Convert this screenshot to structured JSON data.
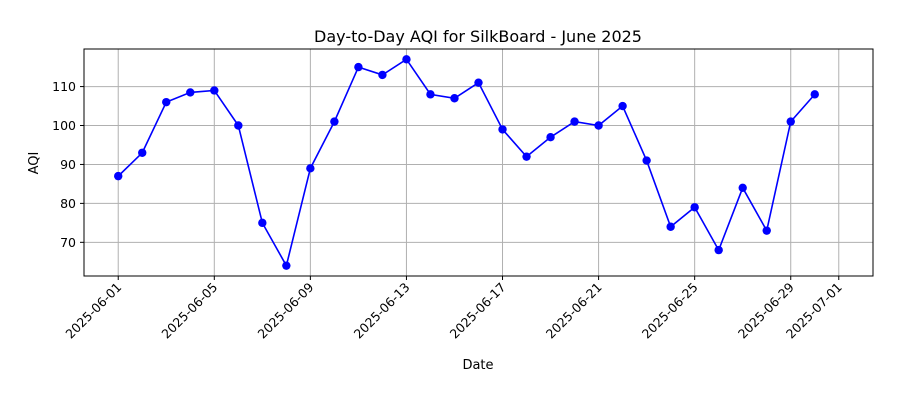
{
  "chart_data": {
    "type": "line",
    "title": "Day-to-Day AQI for SilkBoard - June 2025",
    "xlabel": "Date",
    "ylabel": "AQI",
    "grid": true,
    "x": [
      "2025-06-01",
      "2025-06-02",
      "2025-06-03",
      "2025-06-04",
      "2025-06-05",
      "2025-06-06",
      "2025-06-07",
      "2025-06-08",
      "2025-06-09",
      "2025-06-10",
      "2025-06-11",
      "2025-06-12",
      "2025-06-13",
      "2025-06-14",
      "2025-06-15",
      "2025-06-16",
      "2025-06-17",
      "2025-06-18",
      "2025-06-19",
      "2025-06-20",
      "2025-06-21",
      "2025-06-22",
      "2025-06-23",
      "2025-06-24",
      "2025-06-25",
      "2025-06-26",
      "2025-06-27",
      "2025-06-28",
      "2025-06-29",
      "2025-06-30"
    ],
    "series": [
      {
        "color": "#0000ff",
        "values": [
          87,
          93,
          106,
          108.5,
          109,
          100,
          75,
          64,
          89,
          101,
          115,
          113,
          117,
          108,
          107,
          111,
          99,
          92,
          97,
          101,
          100,
          105,
          91,
          74,
          79,
          68,
          84,
          73,
          101,
          108
        ]
      }
    ],
    "xticks": [
      "2025-06-01",
      "2025-06-05",
      "2025-06-09",
      "2025-06-13",
      "2025-06-17",
      "2025-06-21",
      "2025-06-25",
      "2025-06-29",
      "2025-07-01"
    ],
    "yticks": [
      70,
      80,
      90,
      100,
      110
    ],
    "xlim": [
      "2025-05-30T13:48",
      "2025-07-02T10:12"
    ],
    "ylim": [
      61.35,
      119.65
    ]
  }
}
